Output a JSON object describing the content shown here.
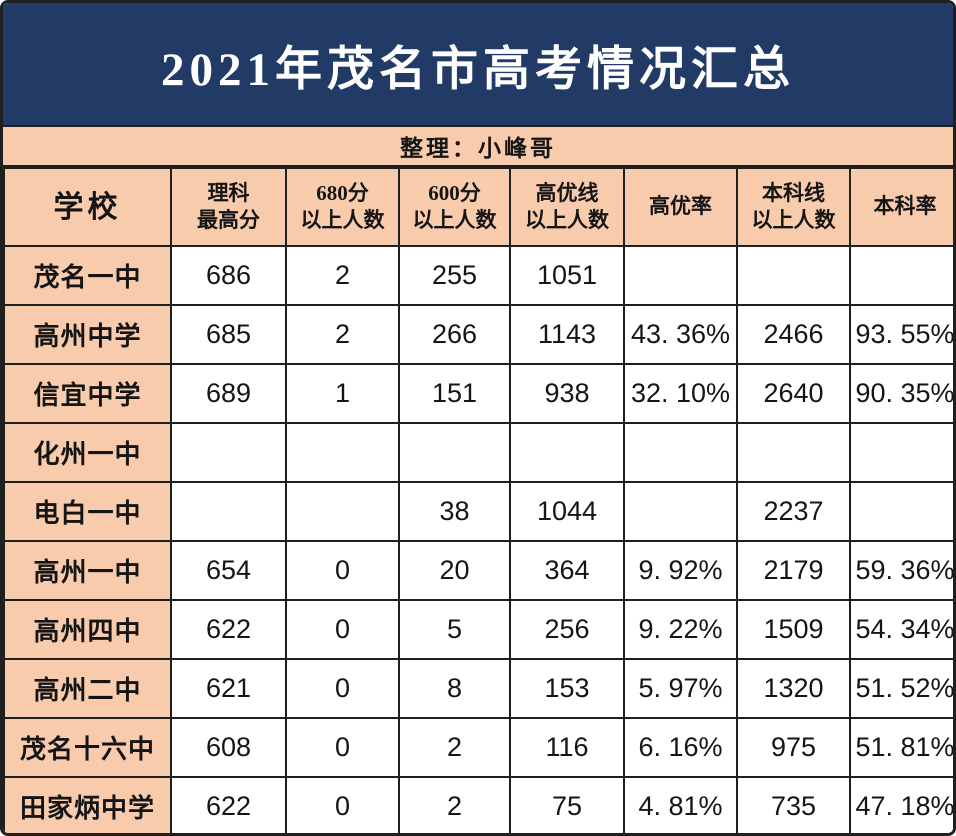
{
  "colors": {
    "title_bg": "#223A66",
    "title_text": "#FFFFFF",
    "band_bg": "#F8CBAD",
    "cell_bg": "#FFFFFF",
    "border": "#1F1F1F",
    "text": "#151515"
  },
  "title": "2021年茂名市高考情况汇总",
  "credit": "整理：小峰哥",
  "table": {
    "columns": [
      {
        "line1": "学校",
        "line2": ""
      },
      {
        "line1": "理科",
        "line2": "最高分"
      },
      {
        "line1": "680分",
        "line2": "以上人数"
      },
      {
        "line1": "600分",
        "line2": "以上人数"
      },
      {
        "line1": "高优线",
        "line2": "以上人数"
      },
      {
        "line1": "高优率",
        "line2": ""
      },
      {
        "line1": "本科线",
        "line2": "以上人数"
      },
      {
        "line1": "本科率",
        "line2": ""
      }
    ],
    "rows": [
      {
        "cells": [
          "茂名一中",
          "686",
          "2",
          "255",
          "1051",
          "",
          "",
          ""
        ]
      },
      {
        "cells": [
          "高州中学",
          "685",
          "2",
          "266",
          "1143",
          "43. 36%",
          "2466",
          "93. 55%"
        ]
      },
      {
        "cells": [
          "信宜中学",
          "689",
          "1",
          "151",
          "938",
          "32. 10%",
          "2640",
          "90. 35%"
        ]
      },
      {
        "cells": [
          "化州一中",
          "",
          "",
          "",
          "",
          "",
          "",
          ""
        ]
      },
      {
        "cells": [
          "电白一中",
          "",
          "",
          "38",
          "1044",
          "",
          "2237",
          ""
        ]
      },
      {
        "cells": [
          "高州一中",
          "654",
          "0",
          "20",
          "364",
          "9. 92%",
          "2179",
          "59. 36%"
        ]
      },
      {
        "cells": [
          "高州四中",
          "622",
          "0",
          "5",
          "256",
          "9. 22%",
          "1509",
          "54. 34%"
        ]
      },
      {
        "cells": [
          "高州二中",
          "621",
          "0",
          "8",
          "153",
          "5. 97%",
          "1320",
          "51. 52%"
        ]
      },
      {
        "cells": [
          "茂名十六中",
          "608",
          "0",
          "2",
          "116",
          "6. 16%",
          "975",
          "51. 81%"
        ]
      },
      {
        "cells": [
          "田家炳中学",
          "622",
          "0",
          "2",
          "75",
          "4. 81%",
          "735",
          "47. 18%"
        ]
      }
    ]
  },
  "chart_data": {
    "type": "table",
    "title": "2021年茂名市高考情况汇总",
    "credit": "整理：小峰哥",
    "columns": [
      "学校",
      "理科最高分",
      "680分以上人数",
      "600分以上人数",
      "高优线以上人数",
      "高优率",
      "本科线以上人数",
      "本科率"
    ],
    "rows": [
      [
        "茂名一中",
        686,
        2,
        255,
        1051,
        null,
        null,
        null
      ],
      [
        "高州中学",
        685,
        2,
        266,
        1143,
        "43.36%",
        2466,
        "93.55%"
      ],
      [
        "信宜中学",
        689,
        1,
        151,
        938,
        "32.10%",
        2640,
        "90.35%"
      ],
      [
        "化州一中",
        null,
        null,
        null,
        null,
        null,
        null,
        null
      ],
      [
        "电白一中",
        null,
        null,
        38,
        1044,
        null,
        2237,
        null
      ],
      [
        "高州一中",
        654,
        0,
        20,
        364,
        "9.92%",
        2179,
        "59.36%"
      ],
      [
        "高州四中",
        622,
        0,
        5,
        256,
        "9.22%",
        1509,
        "54.34%"
      ],
      [
        "高州二中",
        621,
        0,
        8,
        153,
        "5.97%",
        1320,
        "51.52%"
      ],
      [
        "茂名十六中",
        608,
        0,
        2,
        116,
        "6.16%",
        975,
        "51.81%"
      ],
      [
        "田家炳中学",
        622,
        0,
        2,
        75,
        "4.81%",
        735,
        "47.18%"
      ]
    ]
  }
}
